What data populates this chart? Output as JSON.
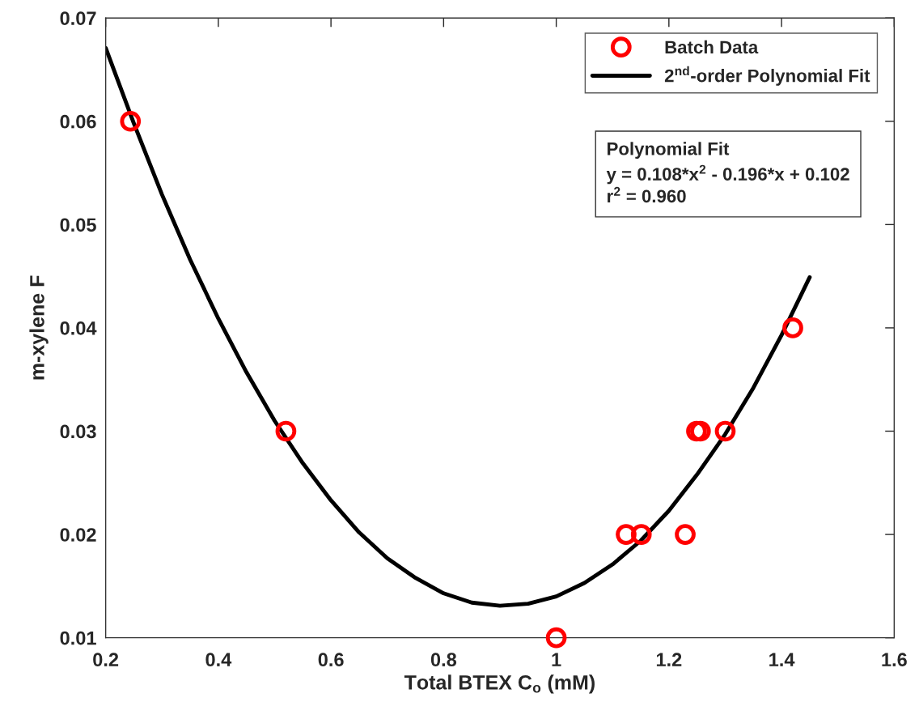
{
  "chart_data": {
    "type": "scatter",
    "xlabel": "Total BTEX C$_{o}$ (mM)",
    "ylabel": "m-xylene F",
    "xlim": [
      0.2,
      1.6
    ],
    "xticks": [
      0.2,
      0.4,
      0.6,
      0.8,
      1,
      1.2,
      1.4,
      1.6
    ],
    "ylim": [
      0.01,
      0.07
    ],
    "yticks": [
      0.01,
      0.02,
      0.03,
      0.04,
      0.05,
      0.06,
      0.07
    ],
    "grid": false,
    "legend": "top right",
    "series": [
      {
        "name": "Batch Data",
        "marker": "circle",
        "color": "#ff0000",
        "x": [
          0.244,
          0.52,
          1.0,
          1.124,
          1.151,
          1.229,
          1.249,
          1.256,
          1.3,
          1.42
        ],
        "values": [
          0.06,
          0.03,
          0.01,
          0.02,
          0.02,
          0.02,
          0.03,
          0.03,
          0.03,
          0.04
        ]
      },
      {
        "name": "2$^{nd}$-order Polynomial Fit",
        "type": "line",
        "marker": "none",
        "color": "#000000",
        "line_style": "solid",
        "x": [
          0.2,
          0.25,
          0.3,
          0.35,
          0.4,
          0.45,
          0.5,
          0.55,
          0.6,
          0.65,
          0.7,
          0.75,
          0.8,
          0.85,
          0.9,
          0.95,
          1.0,
          1.05,
          1.1,
          1.15,
          1.2,
          1.25,
          1.3,
          1.35,
          1.4,
          1.45
        ],
        "values": [
          0.0671,
          0.0598,
          0.0529,
          0.0466,
          0.0409,
          0.0357,
          0.031,
          0.0269,
          0.0233,
          0.0202,
          0.0177,
          0.0158,
          0.0143,
          0.0134,
          0.0131,
          0.0133,
          0.014,
          0.0153,
          0.0171,
          0.0194,
          0.0223,
          0.0258,
          0.0297,
          0.0342,
          0.0393,
          0.0449
        ]
      }
    ],
    "annotations": [
      "Polynomial Fit",
      "y = 0.108*x$^{2}$ - 0.196*x + 0.102",
      "r$^{2}$ = 0.960"
    ]
  }
}
